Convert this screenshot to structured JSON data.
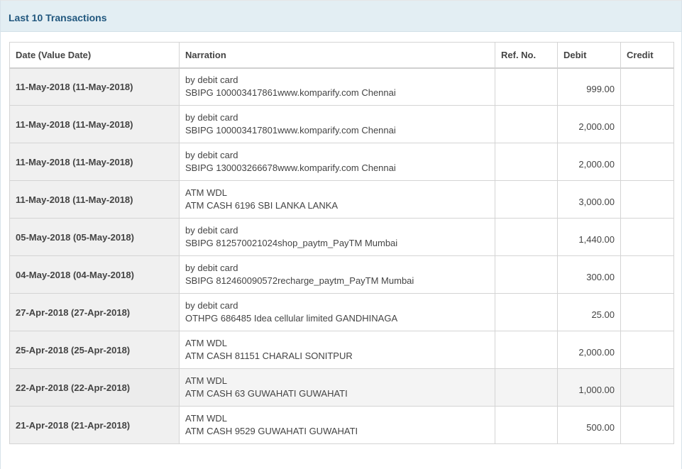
{
  "panel": {
    "title": "Last 10 Transactions"
  },
  "table": {
    "headers": {
      "date": "Date (Value Date)",
      "narration": "Narration",
      "ref": "Ref. No.",
      "debit": "Debit",
      "credit": "Credit"
    },
    "rows": [
      {
        "date": "11-May-2018 (11-May-2018)",
        "narration_line1": "by debit card",
        "narration_line2": "SBIPG 100003417861www.komparify.com Chennai",
        "ref": "",
        "debit": "999.00",
        "credit": ""
      },
      {
        "date": "11-May-2018 (11-May-2018)",
        "narration_line1": "by debit card",
        "narration_line2": "SBIPG 100003417801www.komparify.com Chennai",
        "ref": "",
        "debit": "2,000.00",
        "credit": ""
      },
      {
        "date": "11-May-2018 (11-May-2018)",
        "narration_line1": "by debit card",
        "narration_line2": "SBIPG 130003266678www.komparify.com Chennai",
        "ref": "",
        "debit": "2,000.00",
        "credit": ""
      },
      {
        "date": "11-May-2018 (11-May-2018)",
        "narration_line1": "ATM WDL",
        "narration_line2": "ATM CASH 6196 SBI LANKA LANKA",
        "ref": "",
        "debit": "3,000.00",
        "credit": ""
      },
      {
        "date": "05-May-2018 (05-May-2018)",
        "narration_line1": "by debit card",
        "narration_line2": "SBIPG 812570021024shop_paytm_PayTM Mumbai",
        "ref": "",
        "debit": "1,440.00",
        "credit": ""
      },
      {
        "date": "04-May-2018 (04-May-2018)",
        "narration_line1": "by debit card",
        "narration_line2": "SBIPG 812460090572recharge_paytm_PayTM Mumbai",
        "ref": "",
        "debit": "300.00",
        "credit": ""
      },
      {
        "date": "27-Apr-2018 (27-Apr-2018)",
        "narration_line1": "by debit card",
        "narration_line2": "OTHPG 686485 Idea cellular limited GANDHINAGA",
        "ref": "",
        "debit": "25.00",
        "credit": ""
      },
      {
        "date": "25-Apr-2018 (25-Apr-2018)",
        "narration_line1": "ATM WDL",
        "narration_line2": "ATM CASH 81151 CHARALI SONITPUR",
        "ref": "",
        "debit": "2,000.00",
        "credit": ""
      },
      {
        "date": "22-Apr-2018 (22-Apr-2018)",
        "narration_line1": "ATM WDL",
        "narration_line2": "ATM CASH 63 GUWAHATI GUWAHATI",
        "ref": "",
        "debit": "1,000.00",
        "credit": ""
      },
      {
        "date": "21-Apr-2018 (21-Apr-2018)",
        "narration_line1": "ATM WDL",
        "narration_line2": "ATM CASH 9529 GUWAHATI GUWAHATI",
        "ref": "",
        "debit": "500.00",
        "credit": ""
      }
    ]
  }
}
